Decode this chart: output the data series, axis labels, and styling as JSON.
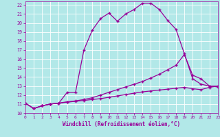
{
  "xlabel": "Windchill (Refroidissement éolien,°C)",
  "bg_color": "#b2e8e8",
  "grid_color": "#ffffff",
  "line_color": "#990099",
  "xlim": [
    0,
    23
  ],
  "ylim": [
    10,
    22.4
  ],
  "xticks": [
    0,
    1,
    2,
    3,
    4,
    5,
    6,
    7,
    8,
    9,
    10,
    11,
    12,
    13,
    14,
    15,
    16,
    17,
    18,
    19,
    20,
    21,
    22,
    23
  ],
  "yticks": [
    10,
    11,
    12,
    13,
    14,
    15,
    16,
    17,
    18,
    19,
    20,
    21,
    22
  ],
  "line1_x": [
    0,
    1,
    2,
    3,
    4,
    5,
    6,
    7,
    8,
    9,
    10,
    11,
    12,
    13,
    14,
    15,
    16,
    17,
    18,
    19,
    20,
    21,
    22,
    23
  ],
  "line1_y": [
    11.1,
    10.5,
    10.8,
    11.0,
    11.1,
    12.3,
    12.3,
    17.0,
    19.2,
    20.5,
    21.1,
    20.2,
    21.0,
    21.5,
    22.2,
    22.2,
    21.5,
    20.3,
    19.3,
    16.6,
    13.8,
    13.2,
    13.0,
    13.0
  ],
  "line2_x": [
    0,
    1,
    2,
    3,
    4,
    5,
    6,
    7,
    8,
    9,
    10,
    11,
    12,
    13,
    14,
    15,
    16,
    17,
    18,
    19,
    20,
    21,
    22,
    23
  ],
  "line2_y": [
    11.1,
    10.5,
    10.8,
    11.0,
    11.1,
    11.25,
    11.35,
    11.5,
    11.7,
    12.0,
    12.3,
    12.6,
    12.9,
    13.2,
    13.5,
    13.9,
    14.3,
    14.8,
    15.3,
    16.5,
    14.2,
    13.8,
    13.0,
    12.9
  ],
  "line3_x": [
    0,
    1,
    2,
    3,
    4,
    5,
    6,
    7,
    8,
    9,
    10,
    11,
    12,
    13,
    14,
    15,
    16,
    17,
    18,
    19,
    20,
    21,
    22,
    23
  ],
  "line3_y": [
    11.1,
    10.5,
    10.8,
    11.0,
    11.1,
    11.2,
    11.3,
    11.4,
    11.5,
    11.6,
    11.75,
    11.9,
    12.05,
    12.2,
    12.35,
    12.45,
    12.55,
    12.65,
    12.75,
    12.85,
    12.7,
    12.6,
    12.85,
    13.0
  ]
}
